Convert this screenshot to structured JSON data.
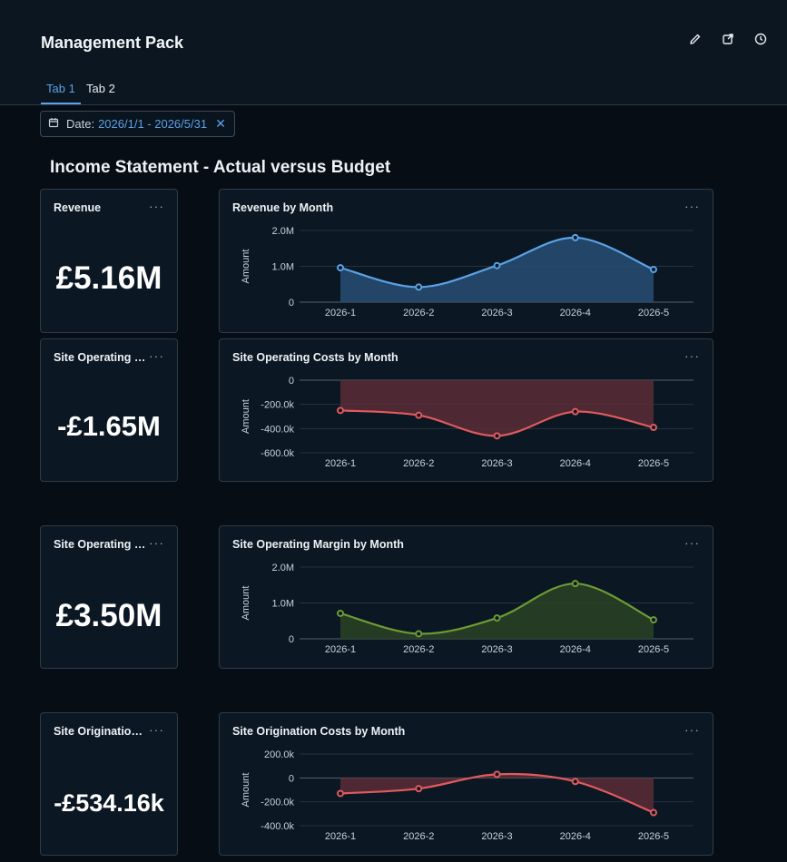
{
  "header": {
    "title": "Management Pack",
    "icons": [
      "pencil-icon",
      "external-link-icon",
      "clock-icon"
    ]
  },
  "tabs": [
    {
      "label": "Tab 1",
      "active": true
    },
    {
      "label": "Tab 2",
      "active": false
    }
  ],
  "filter": {
    "icon": "calendar-icon",
    "label": "Date:",
    "value": "2026/1/1 - 2026/5/31"
  },
  "section_title": "Income Statement - Actual versus Budget",
  "kpis": [
    {
      "title": "Revenue",
      "value": "£5.16M"
    },
    {
      "title": "Site Operating Costs",
      "value": "-£1.65M"
    },
    {
      "title": "Site Operating Margin",
      "value": "£3.50M"
    },
    {
      "title": "Site Origination Costs",
      "value": "-£534.16k"
    }
  ],
  "chart_data": [
    {
      "type": "area",
      "title": "Revenue by Month",
      "ylabel": "Amount",
      "categories": [
        "2026-1",
        "2026-2",
        "2026-3",
        "2026-4",
        "2026-5"
      ],
      "series": [
        {
          "values": [
            960000,
            420000,
            1020000,
            1800000,
            910000
          ]
        }
      ],
      "yticks": [
        0,
        1000000,
        2000000
      ],
      "ytick_labels": [
        "0",
        "1.0M",
        "2.0M"
      ],
      "ylim": [
        0,
        2000000
      ],
      "color": "#5aa2e6",
      "fill": "#274e74"
    },
    {
      "type": "area",
      "title": "Site Operating Costs by Month",
      "ylabel": "Amount",
      "categories": [
        "2026-1",
        "2026-2",
        "2026-3",
        "2026-4",
        "2026-5"
      ],
      "series": [
        {
          "values": [
            -250000,
            -290000,
            -460000,
            -260000,
            -390000
          ]
        }
      ],
      "yticks": [
        0,
        -200000,
        -400000,
        -600000
      ],
      "ytick_labels": [
        "0",
        "-200.0k",
        "-400.0k",
        "-600.0k"
      ],
      "ylim": [
        -600000,
        0
      ],
      "color": "#e05a5f",
      "fill": "#5a2c35"
    },
    {
      "type": "area",
      "title": "Site Operating Margin by Month",
      "ylabel": "Amount",
      "categories": [
        "2026-1",
        "2026-2",
        "2026-3",
        "2026-4",
        "2026-5"
      ],
      "series": [
        {
          "values": [
            710000,
            140000,
            580000,
            1540000,
            530000
          ]
        }
      ],
      "yticks": [
        0,
        1000000,
        2000000
      ],
      "ytick_labels": [
        "0",
        "1.0M",
        "2.0M"
      ],
      "ylim": [
        0,
        2000000
      ],
      "color": "#6d9b35",
      "fill": "#2c4224"
    },
    {
      "type": "area",
      "title": "Site Origination Costs by Month",
      "ylabel": "Amount",
      "categories": [
        "2026-1",
        "2026-2",
        "2026-3",
        "2026-4",
        "2026-5"
      ],
      "series": [
        {
          "values": [
            -130000,
            -90000,
            30000,
            -30000,
            -290000
          ]
        }
      ],
      "yticks": [
        200000,
        0,
        -200000,
        -400000
      ],
      "ytick_labels": [
        "200.0k",
        "0",
        "-200.0k",
        "-400.0k"
      ],
      "ylim": [
        -400000,
        200000
      ],
      "color": "#e05a5f",
      "fill": "#5a2c35"
    }
  ]
}
